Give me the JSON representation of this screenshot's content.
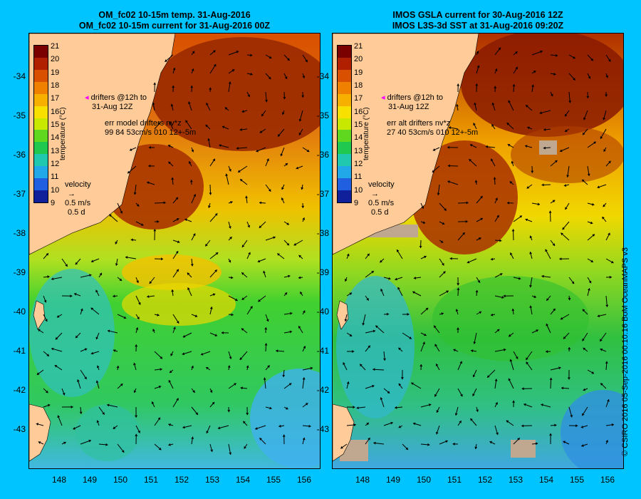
{
  "panels": [
    {
      "title1": "OM_fc02 10-15m temp. 31-Aug-2016",
      "title2": "OM_fc02 10-15m current for 31-Aug-2016 00Z",
      "drifters1": "drifters @12h to",
      "drifters2": "31-Aug 12Z",
      "err1": "err model drifters nv*z",
      "err2": "99 84 53cm/s 010 12+-5m"
    },
    {
      "title1": "IMOS GSLA current for 30-Aug-2016 12Z",
      "title2": "IMOS L3S-3d SST at 31-Aug-2016 09:20Z",
      "drifters1": "drifters @12h to",
      "drifters2": "31-Aug 12Z",
      "err1": "err alt drifters nv*z",
      "err2": "27 40 53cm/s 010 12+-5m"
    }
  ],
  "colorbar": {
    "label": "temperature (°C)",
    "ticks": [
      "21",
      "20",
      "19",
      "18",
      "17",
      "16",
      "15",
      "14",
      "13",
      "12",
      "11",
      "10",
      "9"
    ],
    "colors": [
      "#7a0000",
      "#b02000",
      "#d85000",
      "#f08000",
      "#f8b000",
      "#f8e000",
      "#c8e800",
      "#60d820",
      "#20c850",
      "#20c8b0",
      "#20a8e8",
      "#2060e0",
      "#10209a"
    ]
  },
  "velocity": {
    "label": "velocity",
    "speed": "0.5 m/s",
    "time": "0.5 d"
  },
  "lat_ticks": [
    "-34",
    "-35",
    "-36",
    "-37",
    "-38",
    "-39",
    "-40",
    "-41",
    "-42",
    "-43"
  ],
  "lon_ticks": [
    "148",
    "149",
    "150",
    "151",
    "152",
    "153",
    "154",
    "155",
    "156"
  ],
  "credit": "© CSIRO 2016   05-Sep-2016 00:10:16 BoM OceanMAPS v3",
  "colors": {
    "land": "#ffcc99",
    "background": "#00c4ff",
    "drifter": "#ff00ff"
  }
}
